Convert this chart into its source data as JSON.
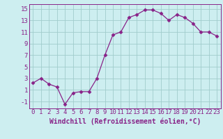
{
  "x": [
    0,
    1,
    2,
    3,
    4,
    5,
    6,
    7,
    8,
    9,
    10,
    11,
    12,
    13,
    14,
    15,
    16,
    17,
    18,
    19,
    20,
    21,
    22,
    23
  ],
  "y": [
    2.2,
    3.0,
    2.0,
    1.5,
    -1.5,
    0.5,
    0.7,
    0.7,
    3.0,
    7.0,
    10.5,
    11.0,
    13.5,
    14.0,
    14.8,
    14.8,
    14.2,
    13.0,
    14.0,
    13.5,
    12.5,
    11.0,
    11.0,
    10.3
  ],
  "line_color": "#882288",
  "marker": "D",
  "marker_size": 2.5,
  "bg_color": "#cdeef0",
  "grid_color": "#a0cccc",
  "xlabel": "Windchill (Refroidissement éolien,°C)",
  "xlabel_fontsize": 7,
  "tick_fontsize": 6.5,
  "xlim": [
    -0.5,
    23.5
  ],
  "ylim": [
    -2.2,
    15.8
  ],
  "yticks": [
    -1,
    1,
    3,
    5,
    7,
    9,
    11,
    13,
    15
  ],
  "ytick_labels": [
    "-1",
    "1",
    "3",
    "5",
    "7",
    "9",
    "11",
    "13",
    "15"
  ],
  "xtick_labels": [
    "0",
    "1",
    "2",
    "3",
    "4",
    "5",
    "6",
    "7",
    "8",
    "9",
    "10",
    "11",
    "12",
    "13",
    "14",
    "15",
    "16",
    "17",
    "18",
    "19",
    "20",
    "21",
    "22",
    "23"
  ]
}
